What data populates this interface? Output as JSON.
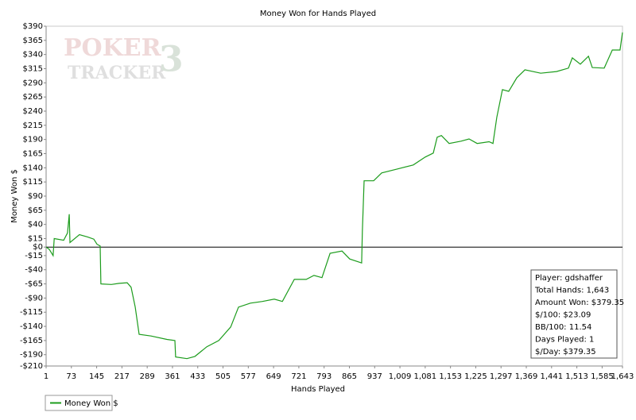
{
  "chart_data": {
    "type": "line",
    "title": "Money Won for Hands Played",
    "xlabel": "Hands Played",
    "ylabel": "Money Won $",
    "watermark": [
      "POKER",
      "TRACKER",
      "3"
    ],
    "xlim": [
      1,
      1643
    ],
    "ylim": [
      -210,
      390
    ],
    "xticks": [
      1,
      73,
      145,
      217,
      289,
      361,
      433,
      505,
      577,
      649,
      721,
      793,
      865,
      937,
      {
        "value": 1009,
        "label": "1,009"
      },
      {
        "value": 1081,
        "label": "1,081"
      },
      {
        "value": 1153,
        "label": "1,153"
      },
      {
        "value": 1225,
        "label": "1,225"
      },
      {
        "value": 1297,
        "label": "1,297"
      },
      {
        "value": 1369,
        "label": "1,369"
      },
      {
        "value": 1441,
        "label": "1,441"
      },
      {
        "value": 1513,
        "label": "1,513"
      },
      {
        "value": 1585,
        "label": "1,585"
      },
      {
        "value": 1643,
        "label": "1,643"
      }
    ],
    "yticks": [
      {
        "value": 390,
        "label": "$390"
      },
      {
        "value": 365,
        "label": "$365"
      },
      {
        "value": 340,
        "label": "$340"
      },
      {
        "value": 315,
        "label": "$315"
      },
      {
        "value": 290,
        "label": "$290"
      },
      {
        "value": 265,
        "label": "$265"
      },
      {
        "value": 240,
        "label": "$240"
      },
      {
        "value": 215,
        "label": "$215"
      },
      {
        "value": 190,
        "label": "$190"
      },
      {
        "value": 165,
        "label": "$165"
      },
      {
        "value": 140,
        "label": "$140"
      },
      {
        "value": 115,
        "label": "$115"
      },
      {
        "value": 90,
        "label": "$90"
      },
      {
        "value": 65,
        "label": "$65"
      },
      {
        "value": 40,
        "label": "$40"
      },
      {
        "value": 15,
        "label": "$15"
      },
      {
        "value": 0,
        "label": "$0"
      },
      {
        "value": -15,
        "label": "-$15"
      },
      {
        "value": -40,
        "label": "-$40"
      },
      {
        "value": -65,
        "label": "-$65"
      },
      {
        "value": -90,
        "label": "-$90"
      },
      {
        "value": -115,
        "label": "-$115"
      },
      {
        "value": -140,
        "label": "-$140"
      },
      {
        "value": -165,
        "label": "-$165"
      },
      {
        "value": -190,
        "label": "-$190"
      },
      {
        "value": -210,
        "label": "-$210"
      }
    ],
    "x": [
      1,
      10,
      21,
      24,
      51,
      62,
      67,
      69,
      96,
      119,
      137,
      146,
      155,
      157,
      187,
      209,
      232,
      243,
      255,
      266,
      300,
      345,
      368,
      370,
      402,
      425,
      459,
      493,
      527,
      549,
      583,
      617,
      651,
      674,
      708,
      742,
      764,
      787,
      810,
      844,
      866,
      900,
      902,
      907,
      934,
      957,
      1002,
      1047,
      1081,
      1104,
      1115,
      1127,
      1149,
      1183,
      1206,
      1229,
      1263,
      1274,
      1285,
      1301,
      1319,
      1342,
      1365,
      1410,
      1455,
      1489,
      1500,
      1523,
      1546,
      1557,
      1591,
      1614,
      1636,
      1643
    ],
    "series": [
      {
        "name": "Money Won $",
        "color": "#1c9c1c",
        "values": [
          0,
          -4,
          -15,
          15,
          12,
          25,
          58,
          8,
          22,
          18,
          14,
          5,
          2,
          -65,
          -66,
          -64,
          -63,
          -71,
          -106,
          -154,
          -157,
          -163,
          -165,
          -194,
          -197,
          -193,
          -176,
          -165,
          -141,
          -106,
          -99,
          -96,
          -92,
          -96,
          -57,
          -57,
          -50,
          -54,
          -11,
          -7,
          -21,
          -28,
          28,
          117,
          117,
          131,
          138,
          145,
          159,
          166,
          194,
          197,
          183,
          187,
          191,
          183,
          186,
          183,
          229,
          278,
          275,
          299,
          313,
          307,
          310,
          316,
          334,
          323,
          337,
          317,
          316,
          348,
          348,
          379
        ]
      }
    ],
    "legend": "bottom-left",
    "stats": [
      "Player: gdshaffer",
      "Total Hands: 1,643",
      "Amount Won: $379.35",
      "$/100: $23.09",
      "BB/100: 11.54",
      "Days Played: 1",
      "$/Day: $379.35"
    ]
  }
}
